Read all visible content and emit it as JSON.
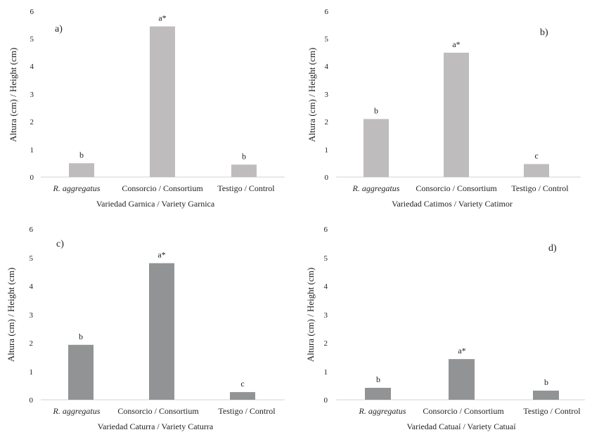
{
  "chart_data": [
    {
      "type": "bar",
      "panel_label": "a)",
      "categories": [
        "R. aggregatus",
        "Consorcio / Consortium",
        "Testigo / Control"
      ],
      "values": [
        0.5,
        5.45,
        0.45
      ],
      "significance": [
        "b",
        "a*",
        "b"
      ],
      "xlabel": "Variedad Garnica / Variety Garnica",
      "ylabel": "Altura (cm) / Height (cm)",
      "ylim": [
        0,
        6
      ],
      "yticks": [
        "0",
        "1",
        "2",
        "3",
        "4",
        "5",
        "6"
      ],
      "bar_color": "#bfbcbd"
    },
    {
      "type": "bar",
      "panel_label": "b)",
      "categories": [
        "R. aggregatus",
        "Consorcio / Consortium",
        "Testigo / Control"
      ],
      "values": [
        2.1,
        4.5,
        0.47
      ],
      "significance": [
        "b",
        "a*",
        "c"
      ],
      "xlabel": "Variedad Catimos / Variety Catimor",
      "ylabel": "Altura (cm) / Height (cm)",
      "ylim": [
        0,
        6
      ],
      "yticks": [
        "0",
        "1",
        "2",
        "3",
        "4",
        "5",
        "6"
      ],
      "bar_color": "#bfbcbd"
    },
    {
      "type": "bar",
      "panel_label": "c)",
      "categories": [
        "R. aggregatus",
        "Consorcio / Consortium",
        "Testigo / Control"
      ],
      "values": [
        1.93,
        4.8,
        0.27
      ],
      "significance": [
        "b",
        "a*",
        "c"
      ],
      "xlabel": "Variedad Caturra / Variety Caturra",
      "ylabel": "Altura (cm) / Height (cm)",
      "ylim": [
        0,
        6
      ],
      "yticks": [
        "0",
        "1",
        "2",
        "3",
        "4",
        "5",
        "6"
      ],
      "bar_color": "#929394"
    },
    {
      "type": "bar",
      "panel_label": "d)",
      "categories": [
        "R. aggregatus",
        "Consorcio / Consortium",
        "Testigo / Control"
      ],
      "values": [
        0.42,
        1.43,
        0.32
      ],
      "significance": [
        "b",
        "a*",
        "b"
      ],
      "xlabel": "Variedad Catuaí / Variety Catuaí",
      "ylabel": "Altura (cm) / Height (cm)",
      "ylim": [
        0,
        6
      ],
      "yticks": [
        "0",
        "1",
        "2",
        "3",
        "4",
        "5",
        "6"
      ],
      "bar_color": "#929394"
    }
  ]
}
